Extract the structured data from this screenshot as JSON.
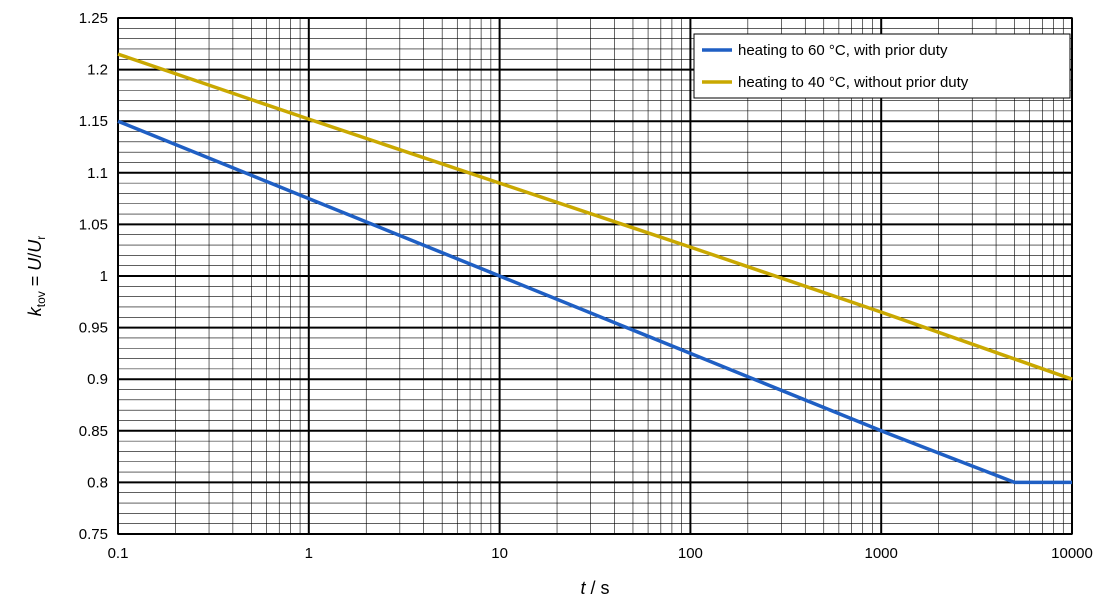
{
  "chart_data": {
    "type": "line",
    "x_scale": "log",
    "xlim": [
      0.1,
      10000
    ],
    "ylim": [
      0.75,
      1.25
    ],
    "grid": true,
    "legend_position": "top-right",
    "x_ticks": [
      {
        "value": 0.1,
        "label": "0.1"
      },
      {
        "value": 1,
        "label": "1"
      },
      {
        "value": 10,
        "label": "10"
      },
      {
        "value": 100,
        "label": "100"
      },
      {
        "value": 1000,
        "label": "1000"
      },
      {
        "value": 10000,
        "label": "10000"
      }
    ],
    "y_ticks": [
      {
        "value": 0.75,
        "label": "0.75"
      },
      {
        "value": 0.8,
        "label": "0.8"
      },
      {
        "value": 0.85,
        "label": "0.85"
      },
      {
        "value": 0.9,
        "label": "0.9"
      },
      {
        "value": 0.95,
        "label": "0.95"
      },
      {
        "value": 1.0,
        "label": "1"
      },
      {
        "value": 1.05,
        "label": "1.05"
      },
      {
        "value": 1.1,
        "label": "1.1"
      },
      {
        "value": 1.15,
        "label": "1.15"
      },
      {
        "value": 1.2,
        "label": "1.2"
      },
      {
        "value": 1.25,
        "label": "1.25"
      }
    ],
    "xlabel": {
      "var": "t",
      "rest": " / s"
    },
    "ylabel": {
      "k": "k",
      "k_sub": "tov",
      "eq": " = ",
      "u1": "U",
      "slash": "/",
      "u2": "U",
      "u2_sub": "r"
    },
    "series": [
      {
        "name": "heating to 60 °C, with prior duty",
        "color": "#1f5fc4",
        "points": [
          [
            0.1,
            1.15
          ],
          [
            1,
            1.075
          ],
          [
            10,
            1.0
          ],
          [
            100,
            0.925
          ],
          [
            1000,
            0.85
          ],
          [
            5000,
            0.8
          ],
          [
            10000,
            0.8
          ]
        ]
      },
      {
        "name": "heating to 40 °C, without prior duty",
        "color": "#c9a800",
        "points": [
          [
            0.1,
            1.215
          ],
          [
            1,
            1.152
          ],
          [
            10,
            1.09
          ],
          [
            100,
            1.028
          ],
          [
            1000,
            0.965
          ],
          [
            10000,
            0.9
          ]
        ]
      }
    ]
  }
}
